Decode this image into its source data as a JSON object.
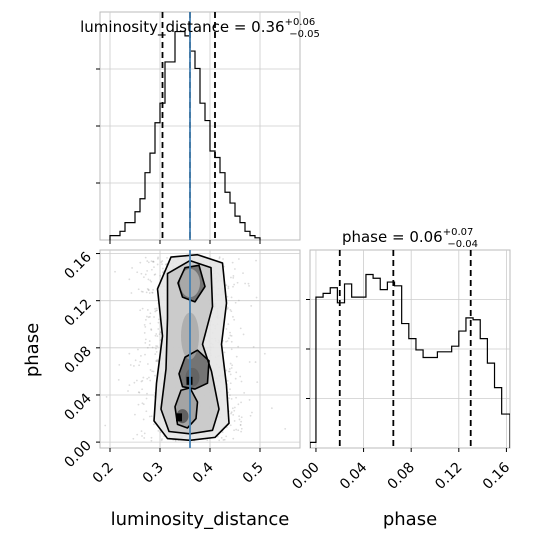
{
  "chart_data": {
    "type": "corner",
    "parameters": [
      "luminosity_distance",
      "phase"
    ],
    "truth": {
      "luminosity_distance": 0.36
    },
    "truth_color": "#4682b4",
    "panels": [
      {
        "id": "hist-luminosity-distance",
        "type": "histogram",
        "parameter": "luminosity_distance",
        "title_prefix": "luminosity_distance = ",
        "median_text": "0.36",
        "upper_text": "+0.06",
        "lower_text": "−0.05",
        "quantiles": [
          0.305,
          0.36,
          0.41
        ],
        "xlim": [
          0.18,
          0.58
        ],
        "ymax": 1.0,
        "bin_edges": [
          0.2,
          0.21,
          0.22,
          0.23,
          0.24,
          0.25,
          0.26,
          0.27,
          0.28,
          0.29,
          0.3,
          0.31,
          0.32,
          0.33,
          0.34,
          0.35,
          0.36,
          0.37,
          0.38,
          0.39,
          0.4,
          0.41,
          0.42,
          0.43,
          0.44,
          0.45,
          0.46,
          0.47,
          0.48,
          0.49,
          0.5
        ],
        "counts": [
          0.02,
          0.02,
          0.04,
          0.08,
          0.08,
          0.13,
          0.19,
          0.31,
          0.4,
          0.54,
          0.63,
          0.82,
          0.82,
          0.96,
          0.96,
          0.94,
          0.87,
          0.79,
          0.63,
          0.55,
          0.41,
          0.38,
          0.31,
          0.22,
          0.17,
          0.11,
          0.08,
          0.04,
          0.02,
          0.01
        ]
      },
      {
        "id": "hist-phase",
        "type": "histogram",
        "parameter": "phase",
        "title_prefix": "phase = ",
        "median_text": "0.06",
        "upper_text": "+0.07",
        "lower_text": "−0.04",
        "quantiles": [
          0.02,
          0.065,
          0.13
        ],
        "xlim": [
          -0.005,
          0.163
        ],
        "ymax": 1.0,
        "bin_edges": [
          -0.005,
          0.0,
          0.006,
          0.012,
          0.018,
          0.024,
          0.03,
          0.036,
          0.042,
          0.048,
          0.054,
          0.06,
          0.066,
          0.072,
          0.078,
          0.084,
          0.09,
          0.096,
          0.102,
          0.108,
          0.114,
          0.12,
          0.126,
          0.132,
          0.138,
          0.144,
          0.15,
          0.156,
          0.163
        ],
        "counts": [
          0.03,
          0.8,
          0.82,
          0.85,
          0.77,
          0.87,
          0.8,
          0.8,
          0.92,
          0.9,
          0.84,
          0.88,
          0.86,
          0.66,
          0.58,
          0.52,
          0.48,
          0.48,
          0.51,
          0.51,
          0.54,
          0.62,
          0.69,
          0.68,
          0.58,
          0.45,
          0.32,
          0.18
        ]
      },
      {
        "id": "scatter-2d",
        "type": "density",
        "x_param": "luminosity_distance",
        "y_param": "phase",
        "xlim": [
          0.18,
          0.58
        ],
        "ylim": [
          -0.005,
          0.163
        ],
        "contour_levels": [
          [
            [
              0.315,
              0.003
            ],
            [
              0.36,
              0.0015
            ],
            [
              0.41,
              0.004
            ],
            [
              0.438,
              0.016
            ],
            [
              0.433,
              0.048
            ],
            [
              0.423,
              0.083
            ],
            [
              0.433,
              0.118
            ],
            [
              0.425,
              0.152
            ],
            [
              0.375,
              0.159
            ],
            [
              0.322,
              0.157
            ],
            [
              0.295,
              0.13
            ],
            [
              0.305,
              0.09
            ],
            [
              0.293,
              0.05
            ],
            [
              0.288,
              0.018
            ]
          ],
          [
            [
              0.318,
              0.009
            ],
            [
              0.36,
              0.007
            ],
            [
              0.405,
              0.01
            ],
            [
              0.418,
              0.028
            ],
            [
              0.403,
              0.06
            ],
            [
              0.385,
              0.083
            ],
            [
              0.405,
              0.115
            ],
            [
              0.402,
              0.148
            ],
            [
              0.36,
              0.154
            ],
            [
              0.315,
              0.143
            ],
            [
              0.315,
              0.105
            ],
            [
              0.312,
              0.062
            ],
            [
              0.302,
              0.028
            ]
          ],
          [
            [
              0.335,
              0.015
            ],
            [
              0.355,
              0.012
            ],
            [
              0.372,
              0.02
            ],
            [
              0.375,
              0.034
            ],
            [
              0.36,
              0.046
            ],
            [
              0.342,
              0.044
            ],
            [
              0.33,
              0.03
            ]
          ],
          [
            [
              0.345,
              0.047
            ],
            [
              0.37,
              0.045
            ],
            [
              0.395,
              0.05
            ],
            [
              0.398,
              0.069
            ],
            [
              0.375,
              0.078
            ],
            [
              0.35,
              0.072
            ],
            [
              0.338,
              0.058
            ]
          ],
          [
            [
              0.345,
              0.123
            ],
            [
              0.37,
              0.119
            ],
            [
              0.39,
              0.132
            ],
            [
              0.378,
              0.15
            ],
            [
              0.35,
              0.148
            ],
            [
              0.336,
              0.135
            ]
          ]
        ],
        "dense_regions": [
          {
            "x": 0.345,
            "y": 0.022,
            "rx": 0.012,
            "ry": 0.006,
            "level": 0.9
          },
          {
            "x": 0.365,
            "y": 0.055,
            "rx": 0.014,
            "ry": 0.008,
            "level": 0.8
          },
          {
            "x": 0.36,
            "y": 0.09,
            "rx": 0.018,
            "ry": 0.02,
            "level": 0.45
          },
          {
            "x": 0.36,
            "y": 0.135,
            "rx": 0.02,
            "ry": 0.012,
            "level": 0.35
          }
        ],
        "markers": [
          {
            "x": 0.338,
            "y": 0.021
          },
          {
            "x": 0.359,
            "y": 0.052
          }
        ]
      }
    ],
    "axes": {
      "x_bottom_left": {
        "label": "luminosity_distance",
        "ticks": [
          0.2,
          0.3,
          0.4,
          0.5
        ],
        "tick_labels": [
          "0.2",
          "0.3",
          "0.4",
          "0.5"
        ]
      },
      "x_bottom_right": {
        "label": "phase",
        "ticks": [
          0.0,
          0.04,
          0.08,
          0.12,
          0.16
        ],
        "tick_labels": [
          "0.00",
          "0.04",
          "0.08",
          "0.12",
          "0.16"
        ]
      },
      "y_scatter": {
        "label": "phase",
        "ticks": [
          0.0,
          0.04,
          0.08,
          0.12,
          0.16
        ],
        "tick_labels": [
          "0.00",
          "0.04",
          "0.08",
          "0.12",
          "0.16"
        ]
      }
    },
    "grid": true
  }
}
